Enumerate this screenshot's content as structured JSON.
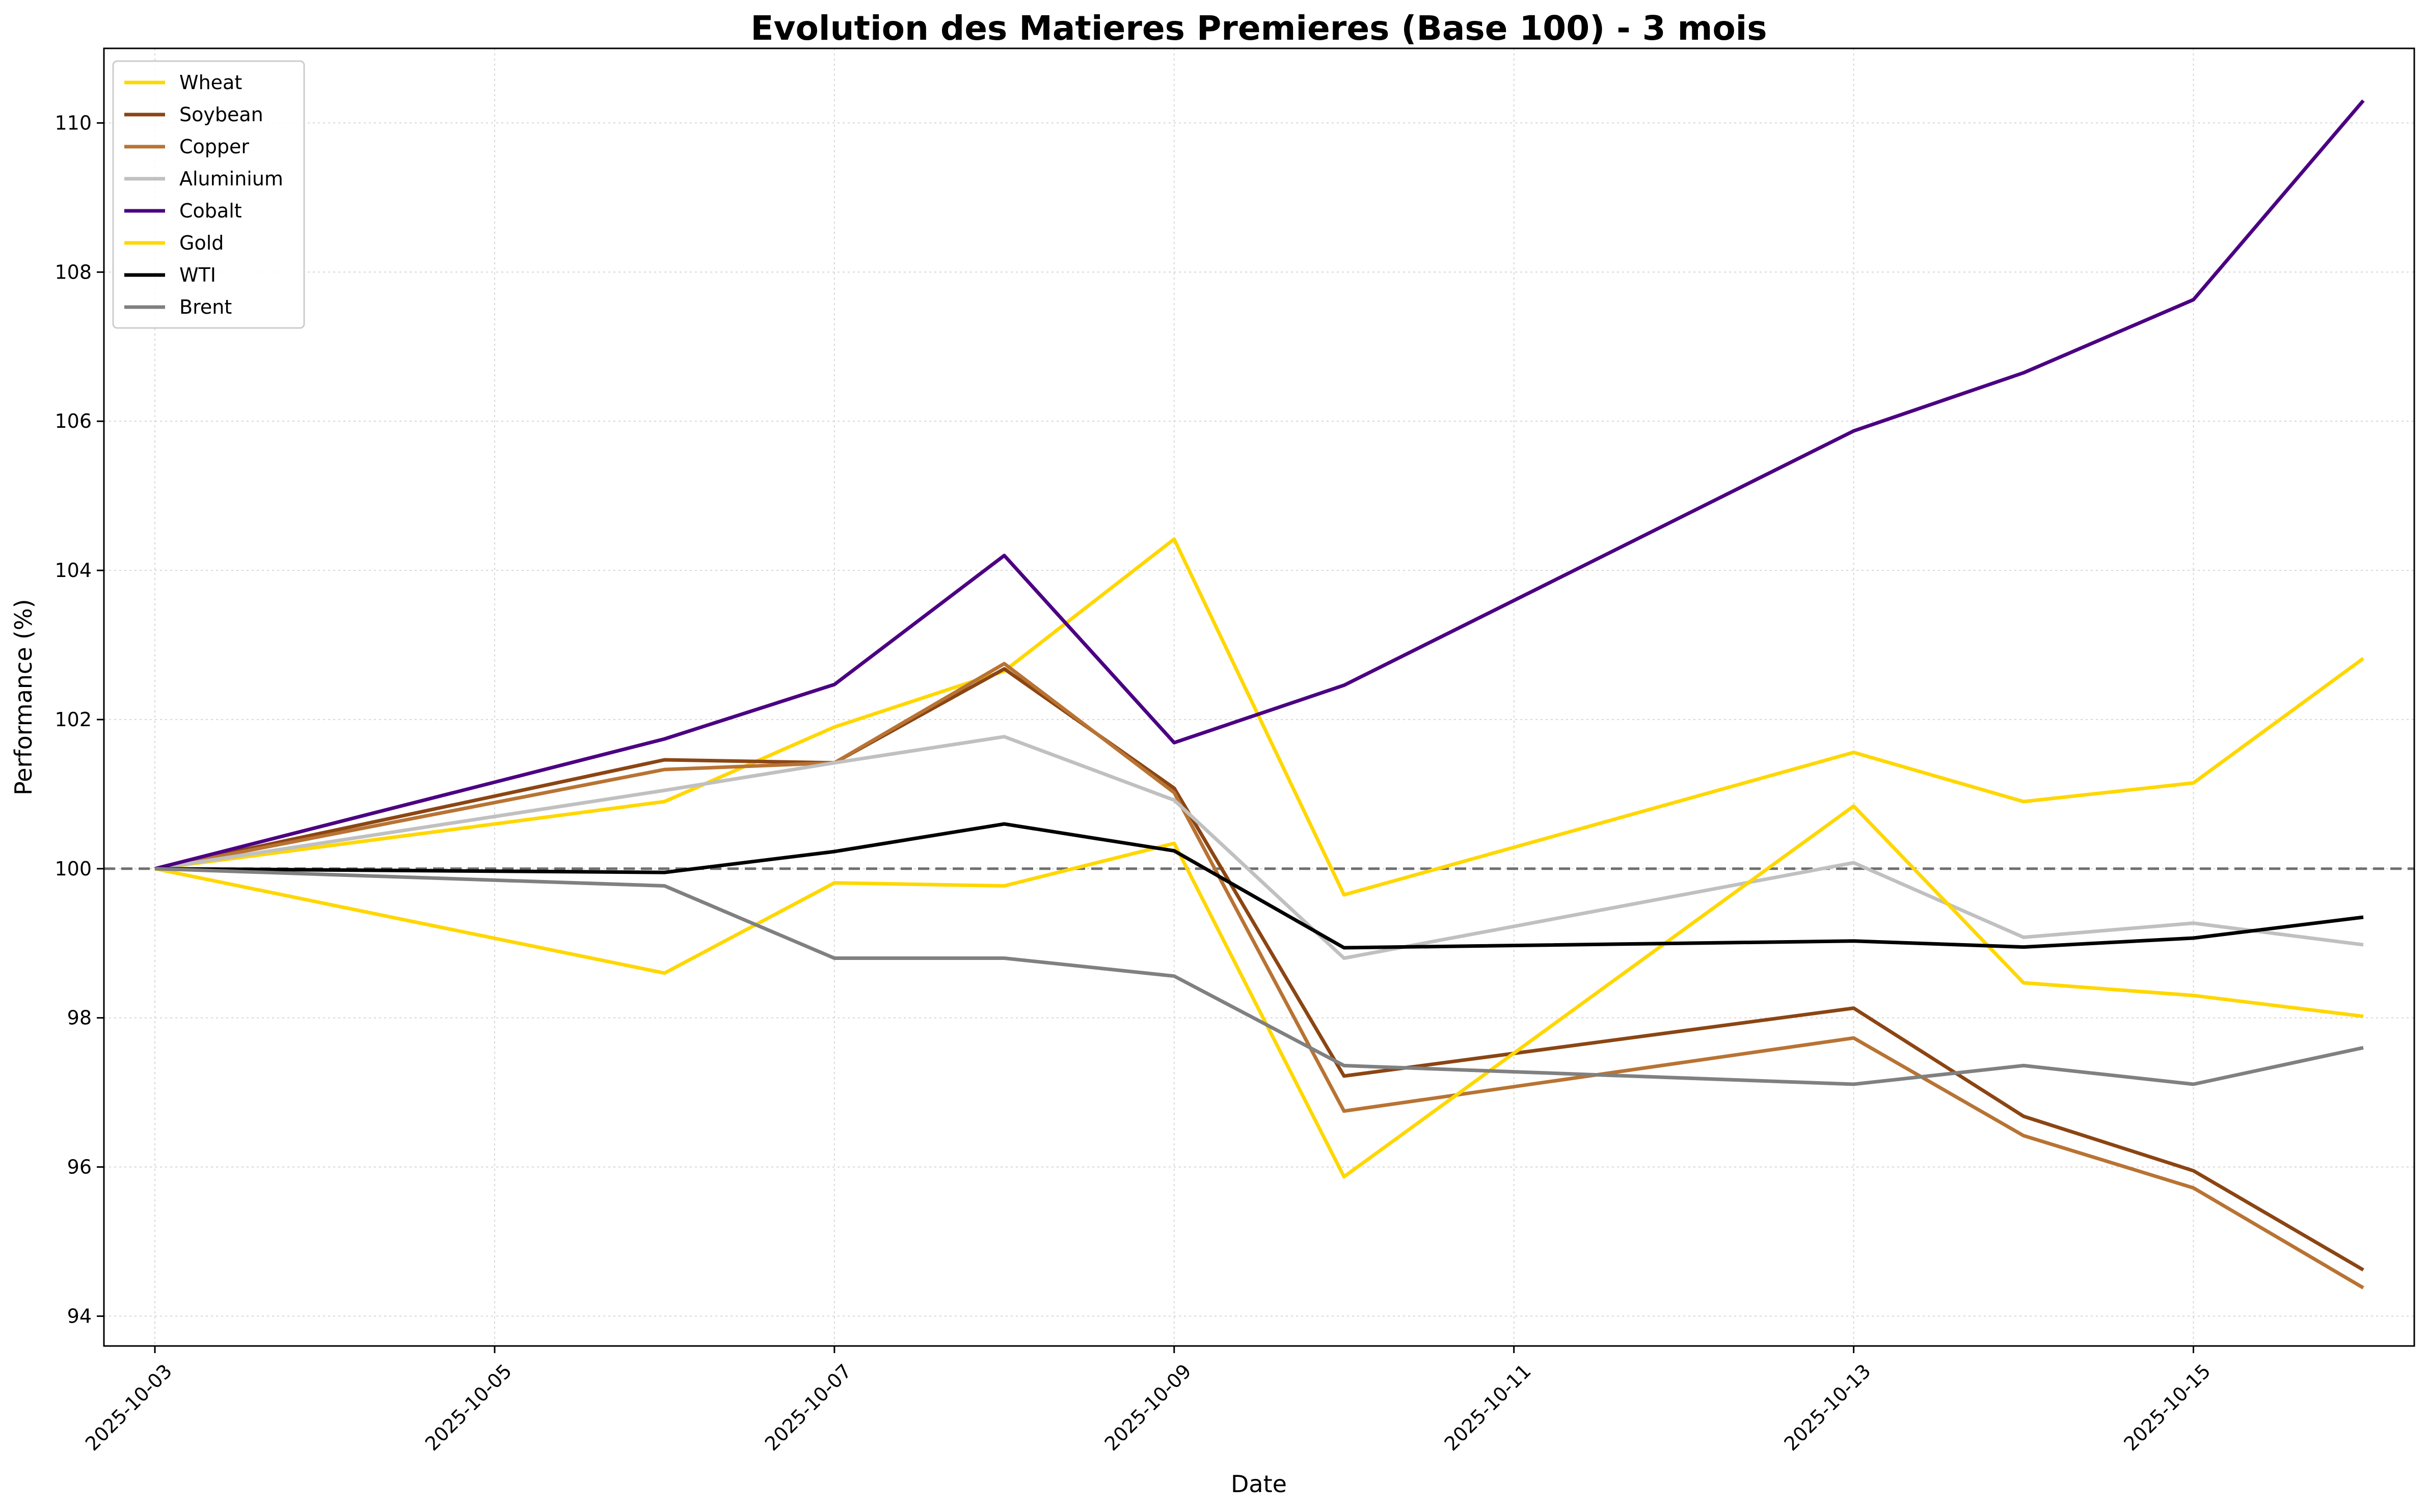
{
  "chart_data": {
    "type": "line",
    "title": "Evolution des Matieres Premieres (Base 100) - 3 mois",
    "xlabel": "Date",
    "ylabel": "Performance (%)",
    "x": [
      "2025-10-03",
      "2025-10-06",
      "2025-10-07",
      "2025-10-08",
      "2025-10-09",
      "2025-10-10",
      "2025-10-13",
      "2025-10-14",
      "2025-10-15",
      "2025-10-16"
    ],
    "x_ticks": [
      "2025-10-03",
      "2025-10-05",
      "2025-10-07",
      "2025-10-09",
      "2025-10-11",
      "2025-10-13",
      "2025-10-15"
    ],
    "y_ticks": [
      94,
      96,
      98,
      100,
      102,
      104,
      106,
      108,
      110
    ],
    "xlim": [
      "2025-10-02 16:48",
      "2025-10-16 07:12"
    ],
    "ylim": [
      93.6,
      111.0
    ],
    "baseline": 100,
    "grid": true,
    "legend_position": "top-left",
    "series": [
      {
        "name": "Wheat",
        "color": "#FFD700",
        "values": [
          100,
          100.9,
          101.9,
          102.65,
          104.42,
          99.65,
          101.56,
          100.9,
          101.15,
          102.82
        ]
      },
      {
        "name": "Soybean",
        "color": "#8B4513",
        "values": [
          100,
          101.46,
          101.42,
          102.68,
          101.08,
          97.22,
          98.13,
          96.68,
          95.95,
          94.62
        ]
      },
      {
        "name": "Copper",
        "color": "#B87333",
        "values": [
          100,
          101.33,
          101.42,
          102.75,
          101.02,
          96.75,
          97.73,
          96.42,
          95.72,
          94.38
        ]
      },
      {
        "name": "Aluminium",
        "color": "#C0C0C0",
        "values": [
          100,
          101.05,
          101.42,
          101.77,
          100.92,
          98.8,
          100.08,
          99.08,
          99.27,
          98.98
        ]
      },
      {
        "name": "Cobalt",
        "color": "#4B0082",
        "values": [
          100,
          101.74,
          102.47,
          104.2,
          101.69,
          102.46,
          105.87,
          106.65,
          107.63,
          110.3
        ]
      },
      {
        "name": "Gold",
        "color": "#FFD700",
        "values": [
          100,
          98.6,
          99.81,
          99.77,
          100.34,
          95.87,
          100.84,
          98.47,
          98.3,
          98.02
        ]
      },
      {
        "name": "WTI",
        "color": "#000000",
        "values": [
          100,
          99.95,
          100.23,
          100.6,
          100.24,
          98.94,
          99.03,
          98.95,
          99.07,
          99.35
        ]
      },
      {
        "name": "Brent",
        "color": "#808080",
        "values": [
          100,
          99.77,
          98.8,
          98.8,
          98.56,
          97.36,
          97.11,
          97.36,
          97.11,
          97.6
        ]
      }
    ]
  }
}
